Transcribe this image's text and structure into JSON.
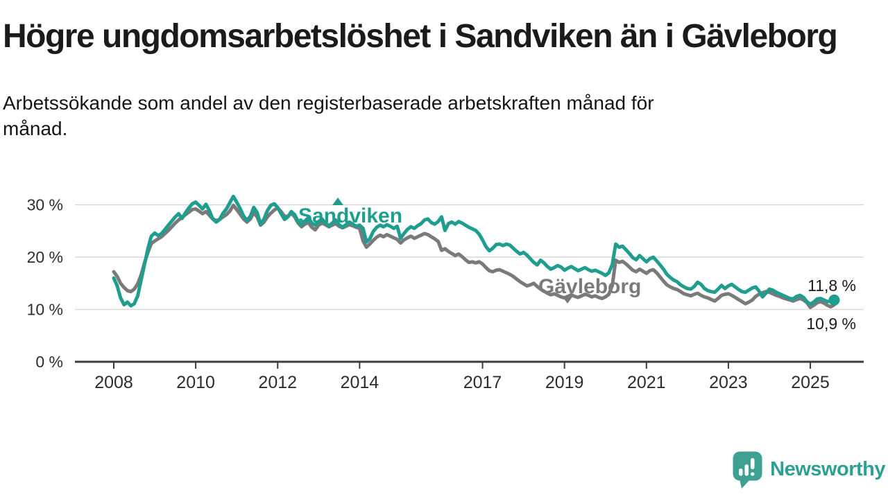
{
  "header": {
    "title": "Högre ungdomsarbetslöshet i Sandviken än i Gävleborg",
    "subtitle_line1": "Arbetssökande som andel av den registerbaserade arbetskraften månad för",
    "subtitle_line2": "månad."
  },
  "colors": {
    "accent_teal": "#1F9D8F",
    "series_gray": "#7A7A7A",
    "grid": "#D8D8D8",
    "axis": "#3B3B3B",
    "logo_icon_teal": "#3EA092",
    "logo_text_teal": "#2CA093"
  },
  "chart_data": {
    "type": "line",
    "unit": "percent",
    "x_start": "2008-01",
    "x_end": "2025-08",
    "points_per_year": 12,
    "ylim": [
      0,
      33
    ],
    "yticks": [
      0,
      10,
      20,
      30
    ],
    "ytick_labels": [
      "0 %",
      "10 %",
      "20 %",
      "30 %"
    ],
    "xticks": [
      2008,
      2010,
      2012,
      2014,
      2017,
      2019,
      2021,
      2023,
      2025
    ],
    "grid": "horizontal",
    "legend_position": "inline-labels",
    "series": [
      {
        "name": "Sandviken",
        "color": "#1F9D8F",
        "end_label": "11,8 %",
        "end_value": 11.8,
        "values": [
          16.0,
          14.5,
          12.2,
          10.9,
          11.4,
          10.7,
          11.1,
          12.6,
          15.6,
          18.6,
          21.6,
          24.0,
          24.6,
          24.1,
          24.5,
          25.3,
          26.1,
          26.9,
          27.7,
          28.3,
          27.4,
          28.5,
          29.4,
          30.2,
          30.5,
          29.9,
          29.2,
          30.1,
          28.9,
          27.3,
          26.7,
          27.2,
          28.4,
          29.2,
          30.4,
          31.6,
          30.5,
          29.3,
          27.9,
          27.0,
          27.8,
          29.5,
          28.5,
          26.3,
          27.3,
          28.9,
          29.9,
          30.2,
          29.5,
          28.3,
          27.2,
          27.7,
          28.7,
          28.1,
          26.8,
          26.2,
          26.9,
          27.5,
          26.5,
          26.1,
          26.8,
          27.3,
          26.5,
          26.0,
          26.5,
          27.1,
          26.2,
          25.7,
          26.2,
          26.7,
          26.3,
          25.9,
          26.1,
          25.5,
          22.9,
          23.5,
          24.9,
          25.7,
          26.1,
          25.8,
          26.2,
          25.9,
          25.5,
          25.9,
          23.6,
          24.5,
          25.3,
          25.8,
          25.5,
          26.0,
          26.4,
          27.1,
          27.3,
          26.6,
          26.3,
          26.8,
          27.7,
          25.1,
          26.4,
          26.7,
          26.3,
          26.8,
          26.5,
          26.1,
          25.7,
          25.4,
          25.1,
          24.4,
          23.3,
          22.0,
          21.2,
          21.7,
          22.4,
          22.5,
          22.2,
          22.5,
          22.3,
          21.7,
          21.1,
          20.6,
          20.9,
          20.4,
          19.7,
          19.0,
          18.5,
          19.4,
          18.9,
          18.2,
          17.7,
          18.0,
          18.4,
          18.1,
          17.5,
          17.9,
          18.2,
          17.8,
          17.4,
          17.7,
          18.0,
          17.6,
          17.3,
          17.5,
          17.2,
          16.9,
          16.5,
          17.0,
          18.6,
          22.5,
          21.9,
          22.1,
          21.4,
          20.7,
          19.9,
          19.5,
          20.3,
          19.7,
          19.1,
          19.7,
          20.0,
          19.3,
          18.5,
          17.7,
          16.7,
          16.1,
          15.6,
          15.3,
          14.7,
          14.3,
          14.0,
          13.9,
          14.4,
          15.2,
          14.8,
          14.0,
          13.6,
          13.4,
          13.3,
          13.9,
          14.6,
          14.0,
          14.5,
          14.8,
          14.3,
          13.8,
          13.4,
          13.3,
          13.7,
          14.1,
          14.3,
          13.5,
          12.4,
          13.1,
          13.9,
          13.7,
          13.3,
          13.0,
          12.7,
          12.4,
          12.1,
          12.0,
          12.5,
          12.7,
          12.3,
          11.5,
          11.0,
          11.4,
          12.0,
          12.1,
          11.8,
          11.5,
          11.6,
          11.8
        ]
      },
      {
        "name": "Gävleborg",
        "color": "#7A7A7A",
        "end_label": "10,9 %",
        "end_value": 10.9,
        "values": [
          17.2,
          16.3,
          15.0,
          14.2,
          13.6,
          13.4,
          13.9,
          14.9,
          16.6,
          18.9,
          20.9,
          22.6,
          23.1,
          23.5,
          23.9,
          24.5,
          25.1,
          25.8,
          26.5,
          27.1,
          27.6,
          28.1,
          28.6,
          29.1,
          29.2,
          28.8,
          28.3,
          28.7,
          28.0,
          27.3,
          27.0,
          27.2,
          27.7,
          28.1,
          28.8,
          29.9,
          29.1,
          28.2,
          27.3,
          26.7,
          27.3,
          28.5,
          27.7,
          26.1,
          26.7,
          27.7,
          28.4,
          29.0,
          29.4,
          28.7,
          27.8,
          27.8,
          28.4,
          27.7,
          26.5,
          25.8,
          26.3,
          26.6,
          25.7,
          25.2,
          26.1,
          26.5,
          26.2,
          25.8,
          26.1,
          26.4,
          25.9,
          25.6,
          25.9,
          26.2,
          26.0,
          25.7,
          25.5,
          23.1,
          21.9,
          22.5,
          23.2,
          23.8,
          24.2,
          23.9,
          24.3,
          24.0,
          23.7,
          23.4,
          22.7,
          23.3,
          23.7,
          24.0,
          23.6,
          23.9,
          24.2,
          24.5,
          24.3,
          23.9,
          23.5,
          23.0,
          21.3,
          21.6,
          21.1,
          20.7,
          20.3,
          20.6,
          20.1,
          19.5,
          19.0,
          19.1,
          18.9,
          19.1,
          18.7,
          18.0,
          17.4,
          17.2,
          17.5,
          17.6,
          17.3,
          17.0,
          16.7,
          16.3,
          15.8,
          15.3,
          14.9,
          14.5,
          14.7,
          15.0,
          14.4,
          13.9,
          13.5,
          13.1,
          12.8,
          13.0,
          12.7,
          12.4,
          12.2,
          12.5,
          12.8,
          12.5,
          12.3,
          12.6,
          12.9,
          12.7,
          12.4,
          12.6,
          12.3,
          12.1,
          12.4,
          12.9,
          14.6,
          19.4,
          19.0,
          19.2,
          18.7,
          18.1,
          17.5,
          17.2,
          17.7,
          17.3,
          16.9,
          17.4,
          17.6,
          17.0,
          16.2,
          15.4,
          14.7,
          14.3,
          14.0,
          13.8,
          13.4,
          13.0,
          12.8,
          12.6,
          12.9,
          13.1,
          12.7,
          12.4,
          12.2,
          11.9,
          11.6,
          12.1,
          12.7,
          12.9,
          13.0,
          12.7,
          12.3,
          11.9,
          11.5,
          11.1,
          11.4,
          11.8,
          12.5,
          12.9,
          13.2,
          13.4,
          13.3,
          13.0,
          12.7,
          12.5,
          12.2,
          12.0,
          11.8,
          11.6,
          11.9,
          12.1,
          11.8,
          11.3,
          10.4,
          10.8,
          11.3,
          11.5,
          11.2,
          10.8,
          10.5,
          10.9
        ]
      }
    ]
  },
  "footer": {
    "brand": "Newsworthy"
  }
}
